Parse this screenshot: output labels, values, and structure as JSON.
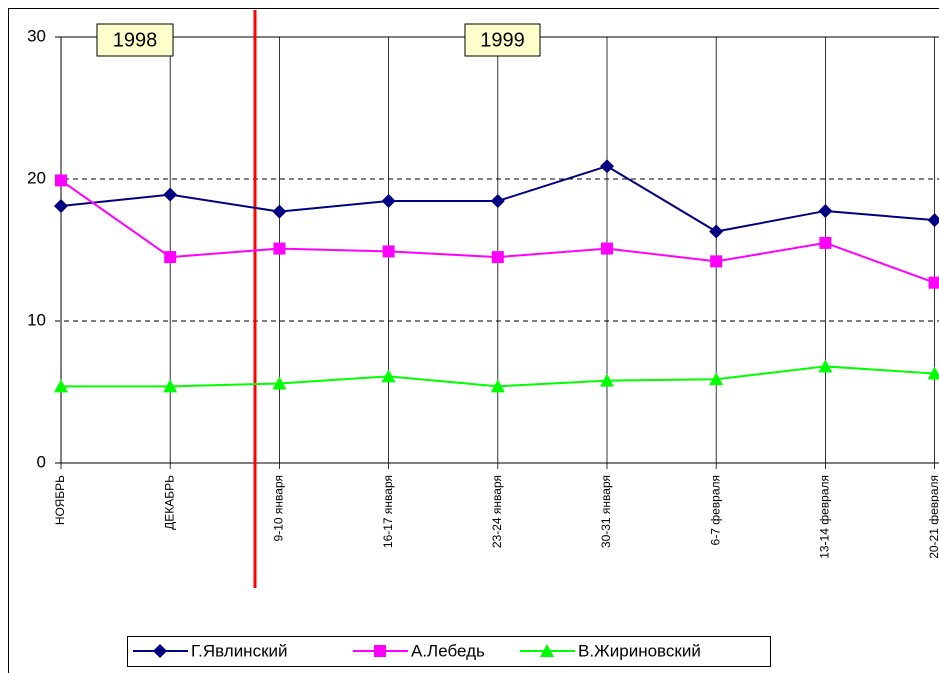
{
  "chart_data": {
    "type": "line",
    "categories": [
      "НОЯБРЬ",
      "ДЕКАБРЬ",
      "9-10 января",
      "16-17 января",
      "23-24 января",
      "30-31 января",
      "6-7 февраля",
      "13-14 февраля",
      "20-21 февраля"
    ],
    "series": [
      {
        "name": "Г.Явлинский",
        "color": "#000080",
        "marker": "diamond",
        "values": [
          18.1,
          18.9,
          17.7,
          18.45,
          18.45,
          20.9,
          16.3,
          17.75,
          17.1
        ]
      },
      {
        "name": "А.Лебедь",
        "color": "#ff00ff",
        "marker": "square",
        "values": [
          19.9,
          14.5,
          15.1,
          14.9,
          14.5,
          15.1,
          14.2,
          15.5,
          12.7
        ]
      },
      {
        "name": "В.Жириновский",
        "color": "#00ff00",
        "marker": "triangle",
        "values": [
          5.4,
          5.4,
          5.6,
          6.1,
          5.4,
          5.8,
          5.9,
          6.8,
          6.3
        ]
      }
    ],
    "annotations": [
      "1998",
      "1999"
    ],
    "ylim": [
      0,
      30
    ],
    "yticks": [
      0,
      10,
      20,
      30
    ],
    "grid": true,
    "legend": "bottom"
  }
}
